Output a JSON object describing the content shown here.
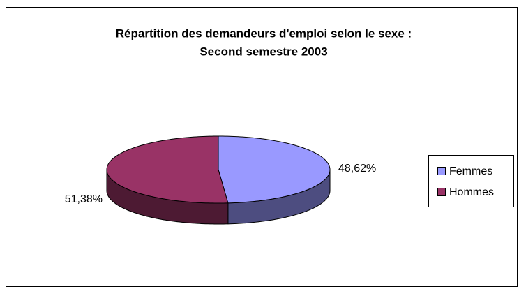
{
  "chart_data": {
    "type": "pie",
    "title": "Répartition des demandeurs d'emploi selon le sexe :",
    "subtitle": "Second semestre 2003",
    "categories": [
      "Femmes",
      "Hommes"
    ],
    "values": [
      48.62,
      51.38
    ],
    "value_labels": [
      "48,62%",
      "51,38%"
    ],
    "colors": [
      "#9999ff",
      "#993366"
    ],
    "side_colors": [
      "#4d4d80",
      "#4d1a33"
    ],
    "legend": "right"
  }
}
